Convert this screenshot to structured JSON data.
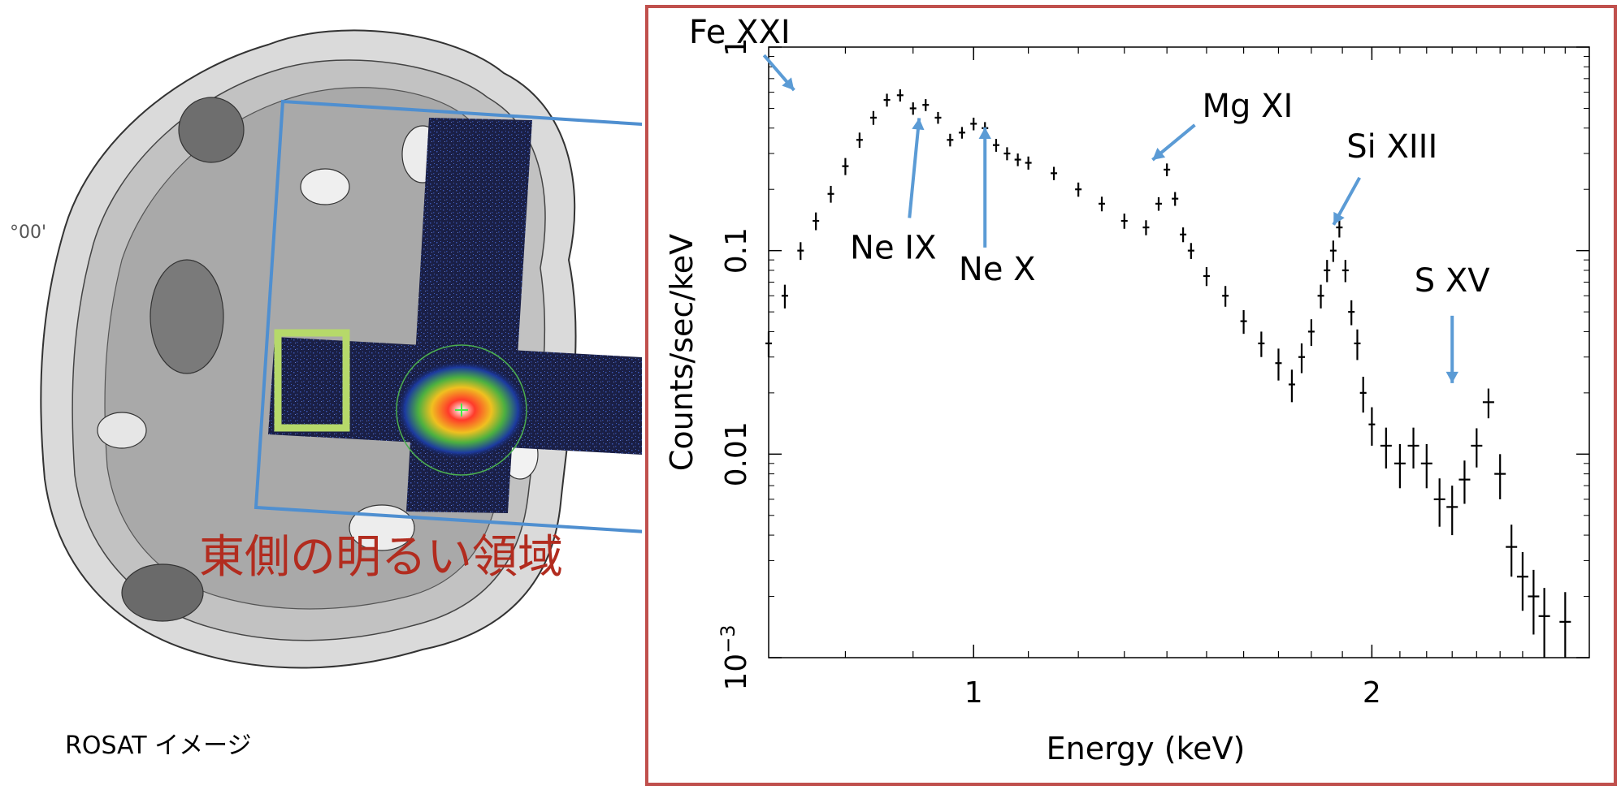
{
  "image_panel": {
    "caption": "ROSAT イメージ",
    "region_label": "東側の明るい領域",
    "edge_tick_label": "°00'"
  },
  "colors": {
    "frame": "#c0504d",
    "fov_box": "#4f8fd0",
    "region_box": "#b6d96a",
    "region_label": "#b22c1f",
    "arrow": "#5b9bd5",
    "data": "#000000"
  },
  "chart_data": {
    "type": "scatter",
    "xlabel": "Energy (keV)",
    "ylabel": "Counts/sec/keV",
    "x_scale": "log",
    "y_scale": "log",
    "xlim": [
      0.7,
      2.92
    ],
    "ylim": [
      0.001,
      1
    ],
    "x_ticks": [
      {
        "value": 1,
        "label": "1"
      },
      {
        "value": 2,
        "label": "2"
      }
    ],
    "y_ticks": [
      {
        "value": 1,
        "label": "1"
      },
      {
        "value": 0.1,
        "label": "0.1"
      },
      {
        "value": 0.01,
        "label": "0.01"
      },
      {
        "value": 0.001,
        "label": "10",
        "exponent": "−3"
      }
    ],
    "series": [
      {
        "x": [
          0.7,
          0.72,
          0.74,
          0.76,
          0.78,
          0.8,
          0.82,
          0.84,
          0.86,
          0.88,
          0.9,
          0.92,
          0.94,
          0.96,
          0.98,
          1.0,
          1.02,
          1.04,
          1.06,
          1.08,
          1.1,
          1.15,
          1.2,
          1.25,
          1.3,
          1.35,
          1.38,
          1.4,
          1.42,
          1.44,
          1.46,
          1.5,
          1.55,
          1.6,
          1.65,
          1.7,
          1.74,
          1.77,
          1.8,
          1.83,
          1.85,
          1.87,
          1.89,
          1.91,
          1.93,
          1.95,
          1.97,
          2.0,
          2.05,
          2.1,
          2.15,
          2.2,
          2.25,
          2.3,
          2.35,
          2.4,
          2.45,
          2.5,
          2.55,
          2.6,
          2.65,
          2.7,
          2.8
        ],
        "y": [
          0.035,
          0.06,
          0.1,
          0.14,
          0.19,
          0.26,
          0.35,
          0.45,
          0.55,
          0.58,
          0.5,
          0.52,
          0.45,
          0.35,
          0.38,
          0.42,
          0.4,
          0.33,
          0.3,
          0.28,
          0.27,
          0.24,
          0.2,
          0.17,
          0.14,
          0.13,
          0.17,
          0.25,
          0.18,
          0.12,
          0.1,
          0.075,
          0.06,
          0.045,
          0.035,
          0.028,
          0.022,
          0.03,
          0.04,
          0.06,
          0.08,
          0.1,
          0.13,
          0.08,
          0.05,
          0.035,
          0.02,
          0.014,
          0.011,
          0.009,
          0.011,
          0.009,
          0.006,
          0.0055,
          0.0075,
          0.011,
          0.018,
          0.008,
          0.0035,
          0.0025,
          0.002,
          0.0016,
          0.0015
        ],
        "yerr": [
          0.005,
          0.008,
          0.01,
          0.014,
          0.018,
          0.025,
          0.03,
          0.035,
          0.04,
          0.04,
          0.035,
          0.035,
          0.03,
          0.025,
          0.025,
          0.03,
          0.028,
          0.024,
          0.022,
          0.02,
          0.02,
          0.018,
          0.016,
          0.014,
          0.012,
          0.011,
          0.013,
          0.018,
          0.014,
          0.01,
          0.009,
          0.008,
          0.007,
          0.006,
          0.005,
          0.005,
          0.004,
          0.005,
          0.006,
          0.008,
          0.01,
          0.012,
          0.014,
          0.01,
          0.007,
          0.006,
          0.004,
          0.003,
          0.0025,
          0.0022,
          0.0025,
          0.0022,
          0.0016,
          0.0015,
          0.0018,
          0.0024,
          0.003,
          0.002,
          0.001,
          0.0008,
          0.0007,
          0.0006,
          0.0006
        ]
      }
    ],
    "annotations": [
      {
        "text": "Fe XXI",
        "x": 0.74,
        "y": 0.55,
        "label_pos": "upper-left"
      },
      {
        "text": "Ne IX",
        "x": 0.92,
        "y": 0.5,
        "label_pos": "below"
      },
      {
        "text": "Ne X",
        "x": 1.02,
        "y": 0.45,
        "label_pos": "below"
      },
      {
        "text": "Mg XI",
        "x": 1.35,
        "y": 0.25,
        "label_pos": "upper-right"
      },
      {
        "text": "Si XIII",
        "x": 1.85,
        "y": 0.12,
        "label_pos": "above"
      },
      {
        "text": "S XV",
        "x": 2.3,
        "y": 0.02,
        "label_pos": "above"
      }
    ]
  }
}
